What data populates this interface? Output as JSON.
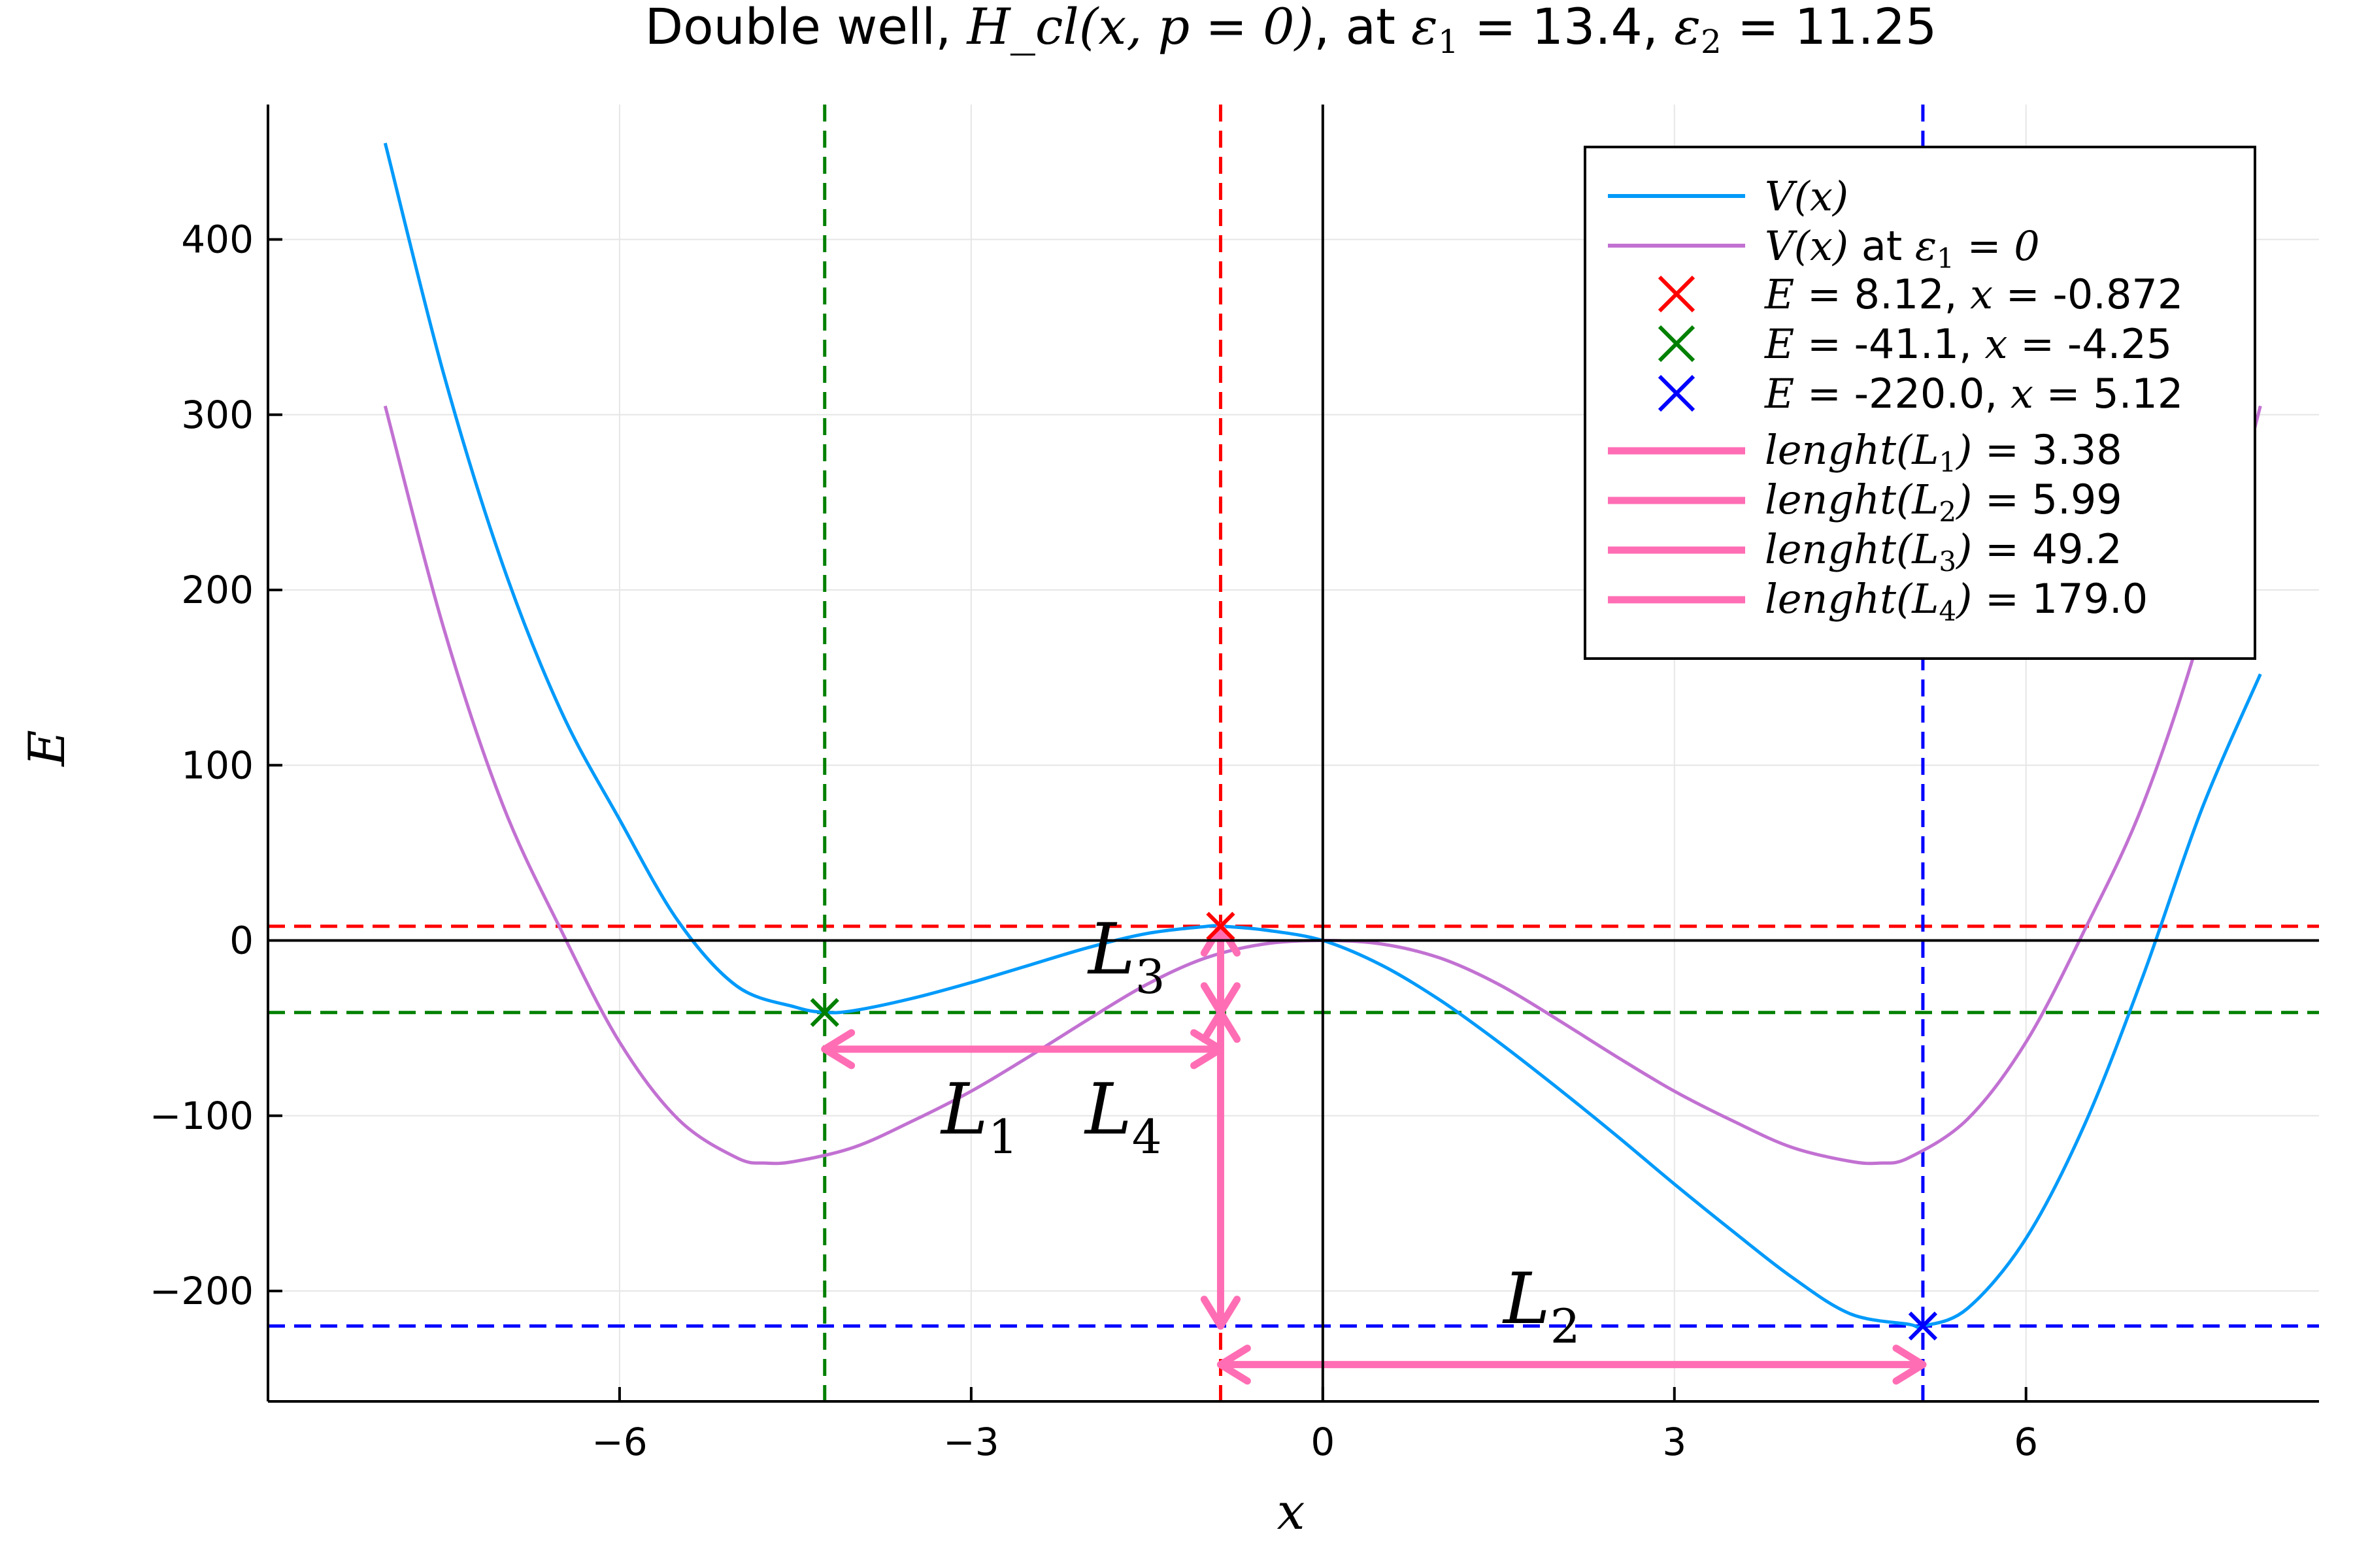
{
  "chart_data": {
    "type": "line",
    "title": {
      "prefix": "Double well, ",
      "math": "H_cl(x, p = 0)",
      "mid": ", at ",
      "eps1_sym": "ε",
      "eps1_sub": "1",
      "eps1_val": " = 13.4, ",
      "eps2_sym": "ε",
      "eps2_sub": "2",
      "eps2_val": " = 11.25"
    },
    "xlabel": "x",
    "ylabel": "E",
    "xlim": [
      -9.0,
      8.5
    ],
    "ylim": [
      -263,
      477
    ],
    "xticks": [
      -6,
      -3,
      0,
      3,
      6
    ],
    "xtick_labels": [
      "−6",
      "−3",
      "0",
      "3",
      "6"
    ],
    "yticks": [
      -200,
      -100,
      0,
      100,
      200,
      300,
      400
    ],
    "ytick_labels": [
      "−200",
      "−100",
      "0",
      "100",
      "200",
      "300",
      "400"
    ],
    "grid": true,
    "legend_position": "top-right",
    "colors": {
      "v": "#009AFA",
      "v0": "#C271D2",
      "red": "#FF0000",
      "green": "#008000",
      "blue": "#0000FF",
      "pink": "#FF6EB4",
      "axis": "#000000",
      "grid": "#E6E6E6"
    },
    "series": [
      {
        "name": "V(x)",
        "color": "#009AFA",
        "x": [
          -8.0,
          -7.5,
          -7.0,
          -6.5,
          -6.0,
          -5.5,
          -5.0,
          -4.5,
          -4.25,
          -4.0,
          -3.5,
          -3.0,
          -2.5,
          -2.0,
          -1.5,
          -1.0,
          -0.872,
          -0.5,
          0.0,
          0.5,
          1.0,
          1.5,
          2.0,
          2.5,
          3.0,
          3.5,
          4.0,
          4.5,
          5.0,
          5.12,
          5.5,
          6.0,
          6.5,
          7.0,
          7.5,
          8.0
        ],
        "y": [
          455,
          323,
          215,
          131,
          69,
          11,
          -26,
          -38,
          -41,
          -40,
          -33,
          -24,
          -14,
          -4,
          4,
          8,
          8.12,
          6,
          0,
          -14,
          -34,
          -58,
          -84,
          -111,
          -139,
          -166,
          -192,
          -213,
          -219,
          -220,
          -210,
          -170,
          -105,
          -20,
          75,
          152
        ]
      },
      {
        "name": "V(x) at ε1 = 0",
        "color": "#C271D2",
        "x": [
          -8.0,
          -7.5,
          -7.0,
          -6.5,
          -6.0,
          -5.5,
          -5.0,
          -4.75,
          -4.5,
          -4.0,
          -3.5,
          -3.0,
          -2.5,
          -2.0,
          -1.5,
          -1.0,
          -0.5,
          0.0,
          0.5,
          1.0,
          1.5,
          2.0,
          2.5,
          3.0,
          3.5,
          4.0,
          4.5,
          4.75,
          5.0,
          5.5,
          6.0,
          6.5,
          7.0,
          7.5,
          8.0
        ],
        "y": [
          305,
          178,
          78,
          6,
          -58,
          -102,
          -124,
          -127,
          -126,
          -118,
          -103,
          -86,
          -66,
          -45,
          -25,
          -10,
          -2,
          0,
          -2,
          -10,
          -25,
          -45,
          -66,
          -86,
          -103,
          -118,
          -126,
          -127,
          -124,
          -102,
          -58,
          6,
          78,
          178,
          305
        ]
      }
    ],
    "markers": [
      {
        "x": -0.872,
        "y": 8.12,
        "color": "#FF0000",
        "e_value": "8.12",
        "x_value": "-0.872"
      },
      {
        "x": -4.25,
        "y": -41.1,
        "color": "#008000",
        "e_value": "-41.1",
        "x_value": "-4.25"
      },
      {
        "x": 5.12,
        "y": -220.0,
        "color": "#0000FF",
        "e_value": "-220.0",
        "x_value": "5.12"
      }
    ],
    "lengths": [
      {
        "label": "L",
        "sub": "1",
        "value": "3.38",
        "kind": "h",
        "a": -4.25,
        "b": -0.872,
        "at": -62
      },
      {
        "label": "L",
        "sub": "2",
        "value": "5.99",
        "kind": "h",
        "a": -0.872,
        "b": 5.12,
        "at": -242
      },
      {
        "label": "L",
        "sub": "3",
        "value": "49.2",
        "kind": "v",
        "a": 8.12,
        "b": -41.1,
        "at": -0.872
      },
      {
        "label": "L",
        "sub": "4",
        "value": "179.0",
        "kind": "v",
        "a": -41.1,
        "b": -220.0,
        "at": -0.872
      }
    ],
    "legend": {
      "v_label": "V(x)",
      "v0_label": "V(x)",
      "v0_suffix": " at ",
      "v0_eps_sym": "ε",
      "v0_eps_sub": "1",
      "v0_eps_val": " = 0",
      "e_sym": "E",
      "eq": " = ",
      "x_sym": "x",
      "comma": ", ",
      "len_prefix": "lenght(",
      "len_close": ")"
    }
  }
}
